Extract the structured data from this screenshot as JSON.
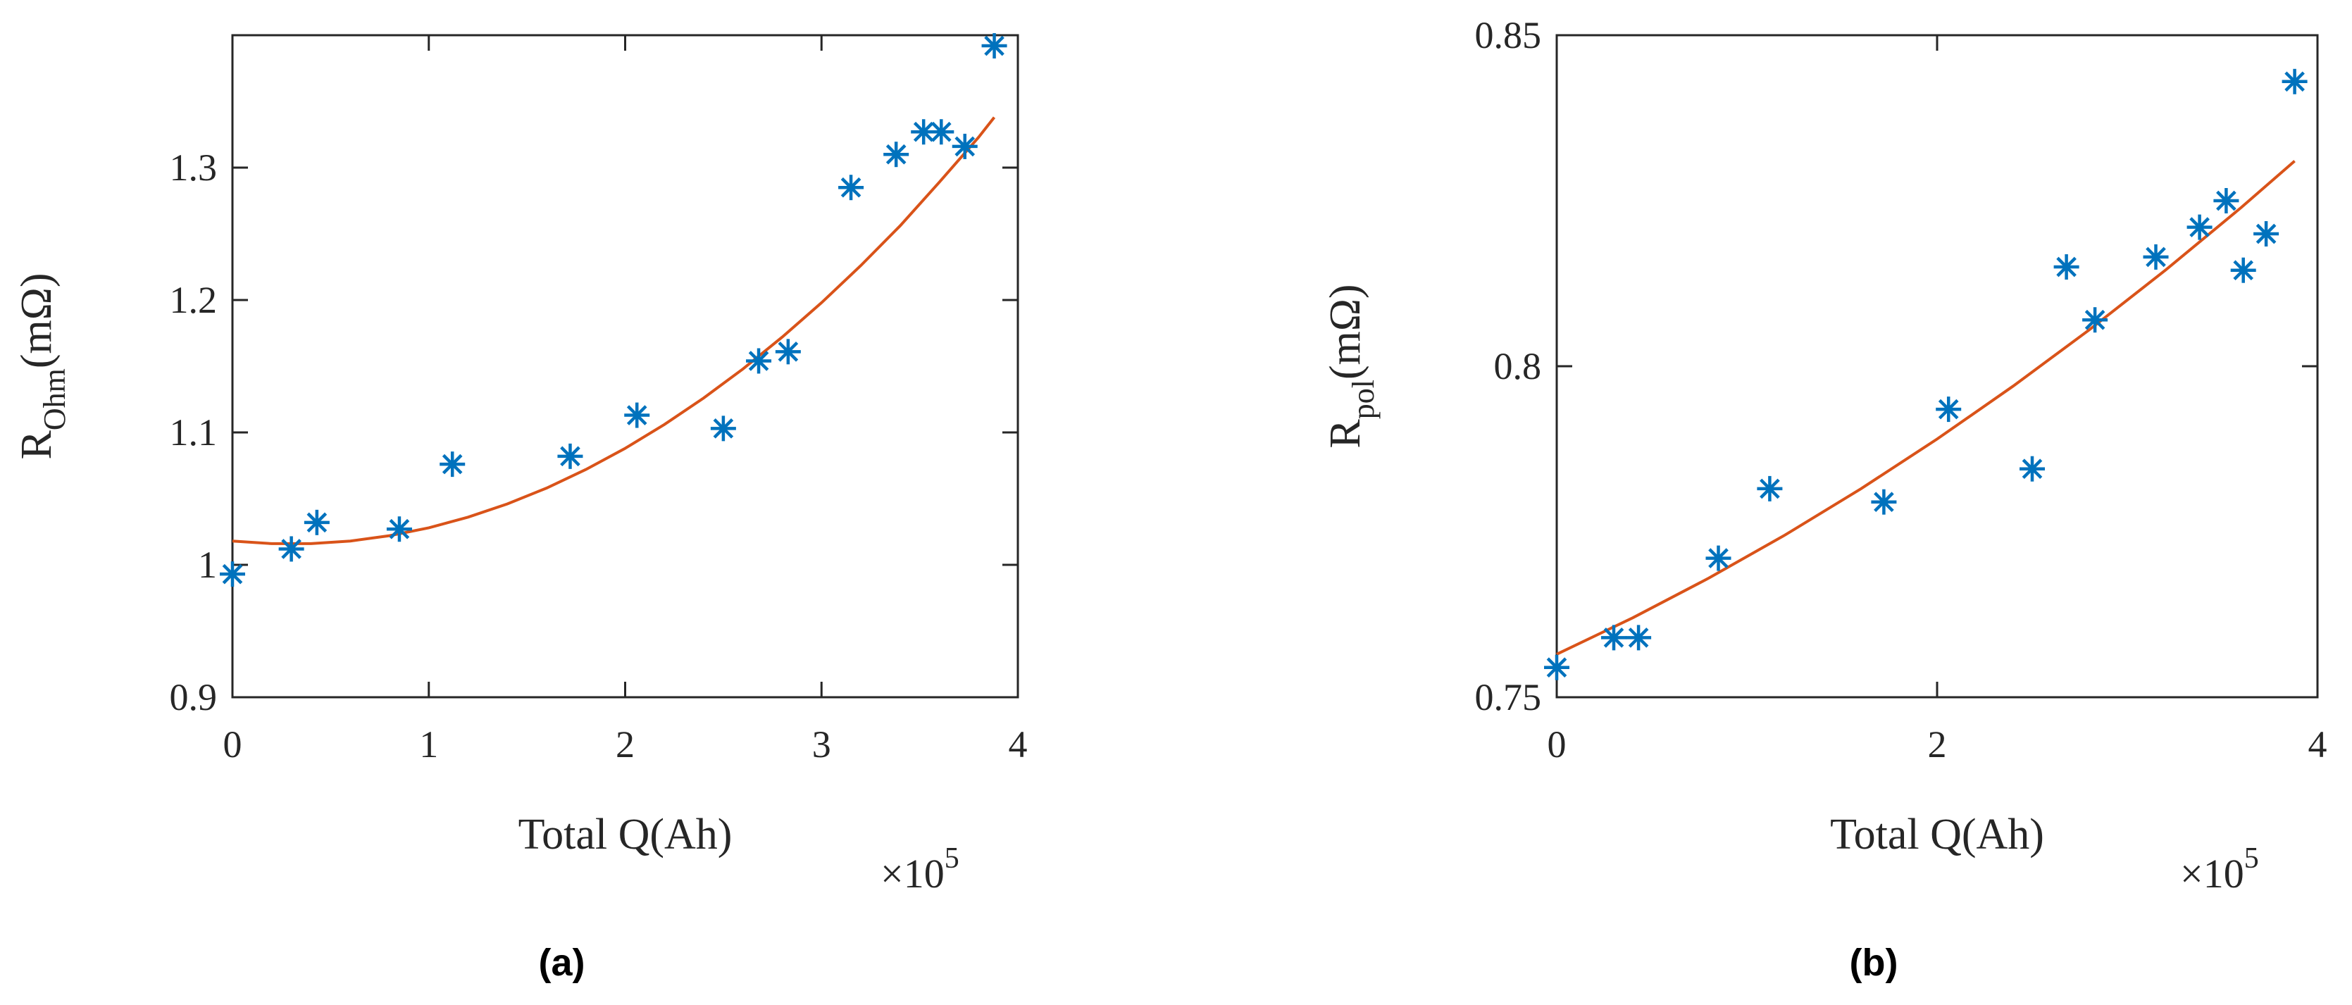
{
  "figure": {
    "colors": {
      "marker": "#0072bd",
      "fit": "#d95319",
      "axis": "#262626"
    }
  },
  "chart_data": [
    {
      "type": "scatter",
      "caption": "(a)",
      "xlabel": "Total Q(Ah)",
      "x_exponent": "×10",
      "x_exponent_power": "5",
      "ylabel_main": "R",
      "ylabel_sub": "Ohm",
      "ylabel_unit": "(mΩ)",
      "xlim": [
        0,
        400000
      ],
      "ylim": [
        0.9,
        1.4
      ],
      "x_ticks": [
        0,
        100000,
        200000,
        300000,
        400000
      ],
      "x_tick_labels": [
        "0",
        "1",
        "2",
        "3",
        "4"
      ],
      "y_ticks": [
        0.9,
        1.0,
        1.1,
        1.2,
        1.3
      ],
      "y_tick_labels": [
        "0.9",
        "1",
        "1.1",
        "1.2",
        "1.3"
      ],
      "grid": false,
      "series": [
        {
          "marker": "asterisk",
          "x": [
            0,
            30000,
            43000,
            85000,
            112000,
            172000,
            206000,
            250000,
            268000,
            283000,
            315000,
            338000,
            352000,
            361000,
            373000,
            388000
          ],
          "y": [
            0.993,
            1.012,
            1.032,
            1.027,
            1.076,
            1.082,
            1.113,
            1.103,
            1.154,
            1.161,
            1.285,
            1.31,
            1.327,
            1.327,
            1.316,
            1.392
          ]
        },
        {
          "line": "fit",
          "x": [
            0,
            20000,
            40000,
            60000,
            80000,
            100000,
            120000,
            140000,
            160000,
            180000,
            200000,
            220000,
            240000,
            260000,
            280000,
            300000,
            320000,
            340000,
            360000,
            380000,
            388000
          ],
          "y": [
            1.018,
            1.016,
            1.016,
            1.018,
            1.022,
            1.028,
            1.036,
            1.046,
            1.058,
            1.072,
            1.088,
            1.106,
            1.126,
            1.148,
            1.172,
            1.198,
            1.226,
            1.256,
            1.289,
            1.323,
            1.338
          ]
        }
      ]
    },
    {
      "type": "scatter",
      "caption": "(b)",
      "xlabel": "Total Q(Ah)",
      "x_exponent": "×10",
      "x_exponent_power": "5",
      "ylabel_main": "R",
      "ylabel_sub": "pol",
      "ylabel_unit": "(mΩ)",
      "xlim": [
        0,
        400000
      ],
      "ylim": [
        0.75,
        0.85
      ],
      "x_ticks": [
        0,
        200000,
        400000
      ],
      "x_tick_labels": [
        "0",
        "2",
        "4"
      ],
      "y_ticks": [
        0.75,
        0.8,
        0.85
      ],
      "y_tick_labels": [
        "0.75",
        "0.8",
        "0.85"
      ],
      "grid": false,
      "series": [
        {
          "marker": "asterisk",
          "x": [
            0,
            30000,
            43000,
            85000,
            112000,
            172000,
            206000,
            250000,
            268000,
            283000,
            315000,
            338000,
            352000,
            361000,
            373000,
            388000
          ],
          "y": [
            0.7545,
            0.759,
            0.759,
            0.771,
            0.7815,
            0.7795,
            0.7935,
            0.7845,
            0.815,
            0.807,
            0.8165,
            0.821,
            0.825,
            0.8145,
            0.82,
            0.843
          ]
        },
        {
          "line": "fit",
          "x": [
            0,
            40000,
            80000,
            120000,
            160000,
            200000,
            240000,
            280000,
            320000,
            360000,
            388000
          ],
          "y": [
            0.7565,
            0.762,
            0.768,
            0.7745,
            0.7815,
            0.789,
            0.797,
            0.8055,
            0.8145,
            0.824,
            0.831
          ]
        }
      ]
    }
  ]
}
